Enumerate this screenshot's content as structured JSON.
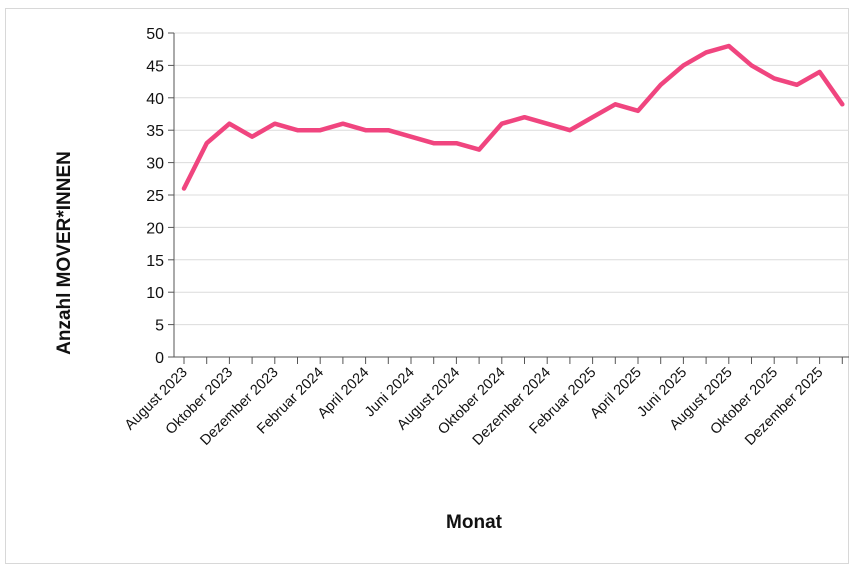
{
  "chart_data": {
    "type": "line",
    "title": "",
    "xlabel": "Monat",
    "ylabel": "Anzahl MOVER*INNEN",
    "ylim": [
      0,
      50
    ],
    "y_ticks": [
      "0",
      "5",
      "10",
      "15",
      "20",
      "25",
      "30",
      "35",
      "40",
      "45",
      "50"
    ],
    "grid": true,
    "x": [
      "August 2023",
      "September 2023",
      "Oktober 2023",
      "November 2023",
      "Dezember 2023",
      "Januar 2024",
      "Februar 2024",
      "März 2024",
      "April 2024",
      "Mai 2024",
      "Juni 2024",
      "Juli 2024",
      "August 2024",
      "September 2024",
      "Oktober 2024",
      "November 2024",
      "Dezember 2024",
      "Januar 2025",
      "Februar 2025",
      "März 2025",
      "April 2025",
      "Mai 2025",
      "Juni 2025",
      "Juli 2025",
      "August 2025",
      "September 2025",
      "Oktober 2025",
      "November 2025",
      "Dezember 2025",
      "Januar 2026"
    ],
    "x_tick_labels": [
      "August 2023",
      "Oktober 2023",
      "Dezember 2023",
      "Februar 2024",
      "April 2024",
      "Juni 2024",
      "August 2024",
      "Oktober 2024",
      "Dezember 2024",
      "Februar 2025",
      "April 2025",
      "Juni 2025",
      "August 2025",
      "Oktober 2025",
      "Dezember 2025"
    ],
    "series": [
      {
        "color": "#f0457f",
        "values": [
          26,
          33,
          36,
          34,
          36,
          35,
          35,
          36,
          35,
          35,
          34,
          33,
          33,
          32,
          36,
          37,
          36,
          35,
          37,
          39,
          38,
          42,
          45,
          47,
          48,
          45,
          43,
          42,
          44,
          39
        ]
      }
    ]
  }
}
